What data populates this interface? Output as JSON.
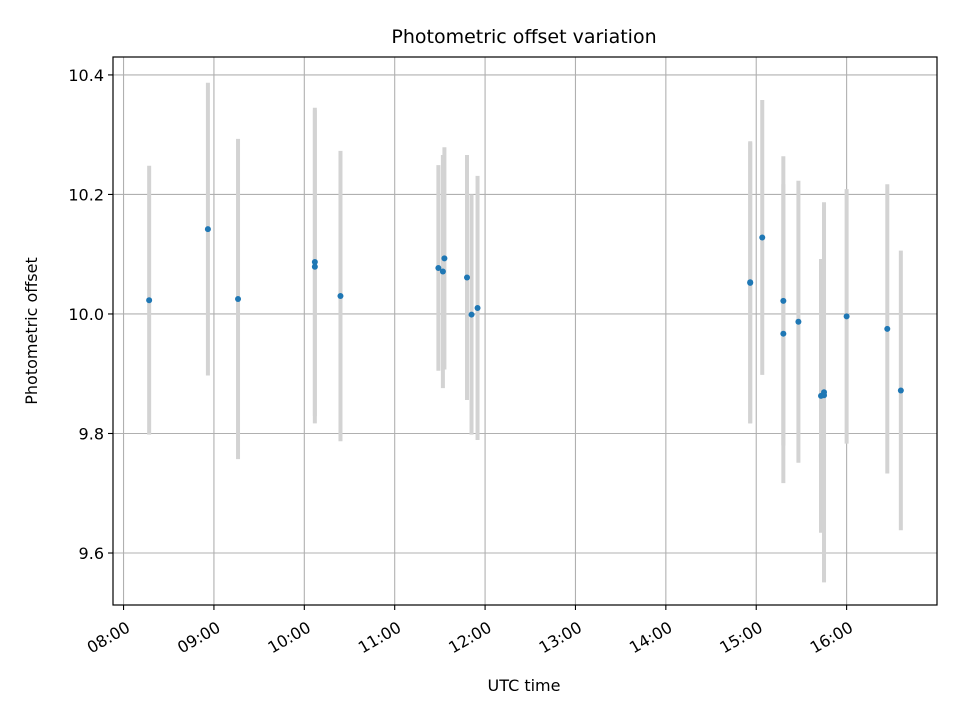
{
  "chart_data": {
    "type": "scatter",
    "title": "Photometric offset variation",
    "xlabel": "UTC time",
    "ylabel": "Photometric offset",
    "x_ticks": [
      "08:00",
      "09:00",
      "10:00",
      "11:00",
      "12:00",
      "13:00",
      "14:00",
      "15:00",
      "16:00"
    ],
    "x_tick_values": [
      "08:00",
      "09:00",
      "10:00",
      "11:00",
      "12:00",
      "13:00",
      "14:00",
      "15:00",
      "16:00"
    ],
    "y_ticks": [
      "9.6",
      "9.8",
      "10.0",
      "10.2",
      "10.4"
    ],
    "y_tick_values": [
      9.6,
      9.8,
      10.0,
      10.2,
      10.4
    ],
    "xlim": [
      "07:53",
      "17:00"
    ],
    "ylim": [
      9.513,
      10.43
    ],
    "grid": true,
    "colors": {
      "point": "#1f77b4",
      "errorbar": "#d3d3d3",
      "grid": "#b0b0b0"
    },
    "points": [
      {
        "x": "08:17",
        "y": 10.023,
        "err": 0.225
      },
      {
        "x": "08:56",
        "y": 10.142,
        "err": 0.245
      },
      {
        "x": "09:16",
        "y": 10.025,
        "err": 0.268
      },
      {
        "x": "10:07",
        "y": 10.087,
        "err": 0.258
      },
      {
        "x": "10:07",
        "y": 10.079,
        "err": 0.262
      },
      {
        "x": "10:24",
        "y": 10.03,
        "err": 0.243
      },
      {
        "x": "11:29",
        "y": 10.077,
        "err": 0.172
      },
      {
        "x": "11:33",
        "y": 10.093,
        "err": 0.186
      },
      {
        "x": "11:32",
        "y": 10.071,
        "err": 0.195
      },
      {
        "x": "11:48",
        "y": 10.061,
        "err": 0.205
      },
      {
        "x": "11:51",
        "y": 9.999,
        "err": 0.201
      },
      {
        "x": "11:55",
        "y": 10.01,
        "err": 0.221
      },
      {
        "x": "14:56",
        "y": 10.052,
        "err": 0.235
      },
      {
        "x": "14:56",
        "y": 10.053,
        "err": 0.236
      },
      {
        "x": "15:04",
        "y": 10.128,
        "err": 0.23
      },
      {
        "x": "15:18",
        "y": 10.022,
        "err": 0.242
      },
      {
        "x": "15:18",
        "y": 9.967,
        "err": 0.25
      },
      {
        "x": "15:28",
        "y": 9.987,
        "err": 0.236
      },
      {
        "x": "15:43",
        "y": 9.863,
        "err": 0.229
      },
      {
        "x": "15:45",
        "y": 9.864,
        "err": 0.313
      },
      {
        "x": "15:45",
        "y": 9.869,
        "err": 0.318
      },
      {
        "x": "16:00",
        "y": 9.996,
        "err": 0.213
      },
      {
        "x": "16:27",
        "y": 9.975,
        "err": 0.242
      },
      {
        "x": "16:36",
        "y": 9.872,
        "err": 0.234
      }
    ]
  }
}
